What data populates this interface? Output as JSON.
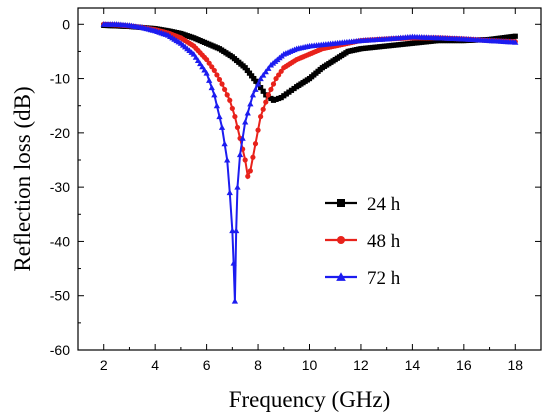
{
  "chart_data": {
    "type": "line",
    "xlabel": "Frequency (GHz)",
    "ylabel": "Reflection loss (dB)",
    "xlim": [
      1,
      19
    ],
    "ylim": [
      -60,
      3
    ],
    "xticks": [
      "2",
      "4",
      "6",
      "8",
      "10",
      "12",
      "14",
      "16",
      "18"
    ],
    "yticks": [
      "0",
      "-10",
      "-20",
      "-30",
      "-40",
      "-50",
      "-60"
    ],
    "legend_position": "center-right",
    "series": [
      {
        "name": "24 h",
        "color": "#000000",
        "marker": "square",
        "x": [
          2,
          2.5,
          3,
          3.5,
          4,
          4.5,
          5,
          5.5,
          6,
          6.5,
          7,
          7.5,
          8,
          8.3,
          8.6,
          8.9,
          9.2,
          9.5,
          10,
          10.5,
          11,
          11.5,
          12,
          13,
          14,
          15,
          16,
          17,
          17.5,
          18
        ],
        "y": [
          -0.2,
          -0.3,
          -0.4,
          -0.6,
          -0.8,
          -1.2,
          -1.7,
          -2.5,
          -3.5,
          -4.5,
          -6,
          -8,
          -11,
          -13,
          -14,
          -13.5,
          -12.5,
          -11.5,
          -10,
          -8,
          -6.5,
          -5,
          -4.5,
          -4,
          -3.5,
          -3,
          -3,
          -2.8,
          -2.5,
          -2.2
        ]
      },
      {
        "name": "48 h",
        "color": "#e8221b",
        "marker": "circle",
        "x": [
          2,
          2.5,
          3,
          3.5,
          4,
          4.5,
          5,
          5.5,
          6,
          6.3,
          6.6,
          6.9,
          7.1,
          7.3,
          7.5,
          7.6,
          7.7,
          7.9,
          8.1,
          8.4,
          8.7,
          9,
          9.5,
          10,
          10.5,
          11,
          12,
          13,
          14,
          15,
          16,
          17,
          18
        ],
        "y": [
          0,
          -0.1,
          -0.3,
          -0.6,
          -1,
          -1.6,
          -2.5,
          -4,
          -6.5,
          -8.5,
          -11,
          -14,
          -17,
          -21,
          -25,
          -28,
          -27,
          -22,
          -17,
          -13,
          -10,
          -8,
          -6.5,
          -5.5,
          -4.5,
          -4,
          -3,
          -2.7,
          -2.5,
          -2.5,
          -2.7,
          -3,
          -3.2
        ]
      },
      {
        "name": "72 h",
        "color": "#1c1cf0",
        "marker": "triangle",
        "x": [
          2,
          2.5,
          3,
          3.5,
          4,
          4.5,
          5,
          5.5,
          6,
          6.3,
          6.6,
          6.8,
          6.9,
          7.0,
          7.05,
          7.1,
          7.15,
          7.2,
          7.3,
          7.5,
          7.8,
          8.1,
          8.5,
          9,
          9.5,
          10,
          11,
          12,
          13,
          14,
          15,
          16,
          17,
          18
        ],
        "y": [
          0,
          0,
          -0.2,
          -0.6,
          -1.2,
          -2,
          -3.5,
          -5.5,
          -9,
          -13,
          -19,
          -25,
          -31,
          -38,
          -44,
          -51,
          -38,
          -30,
          -24,
          -18,
          -13,
          -10,
          -7.5,
          -5.5,
          -4.5,
          -4,
          -3.5,
          -3,
          -2.7,
          -2.3,
          -2.5,
          -2.7,
          -3,
          -3.3
        ]
      }
    ]
  }
}
